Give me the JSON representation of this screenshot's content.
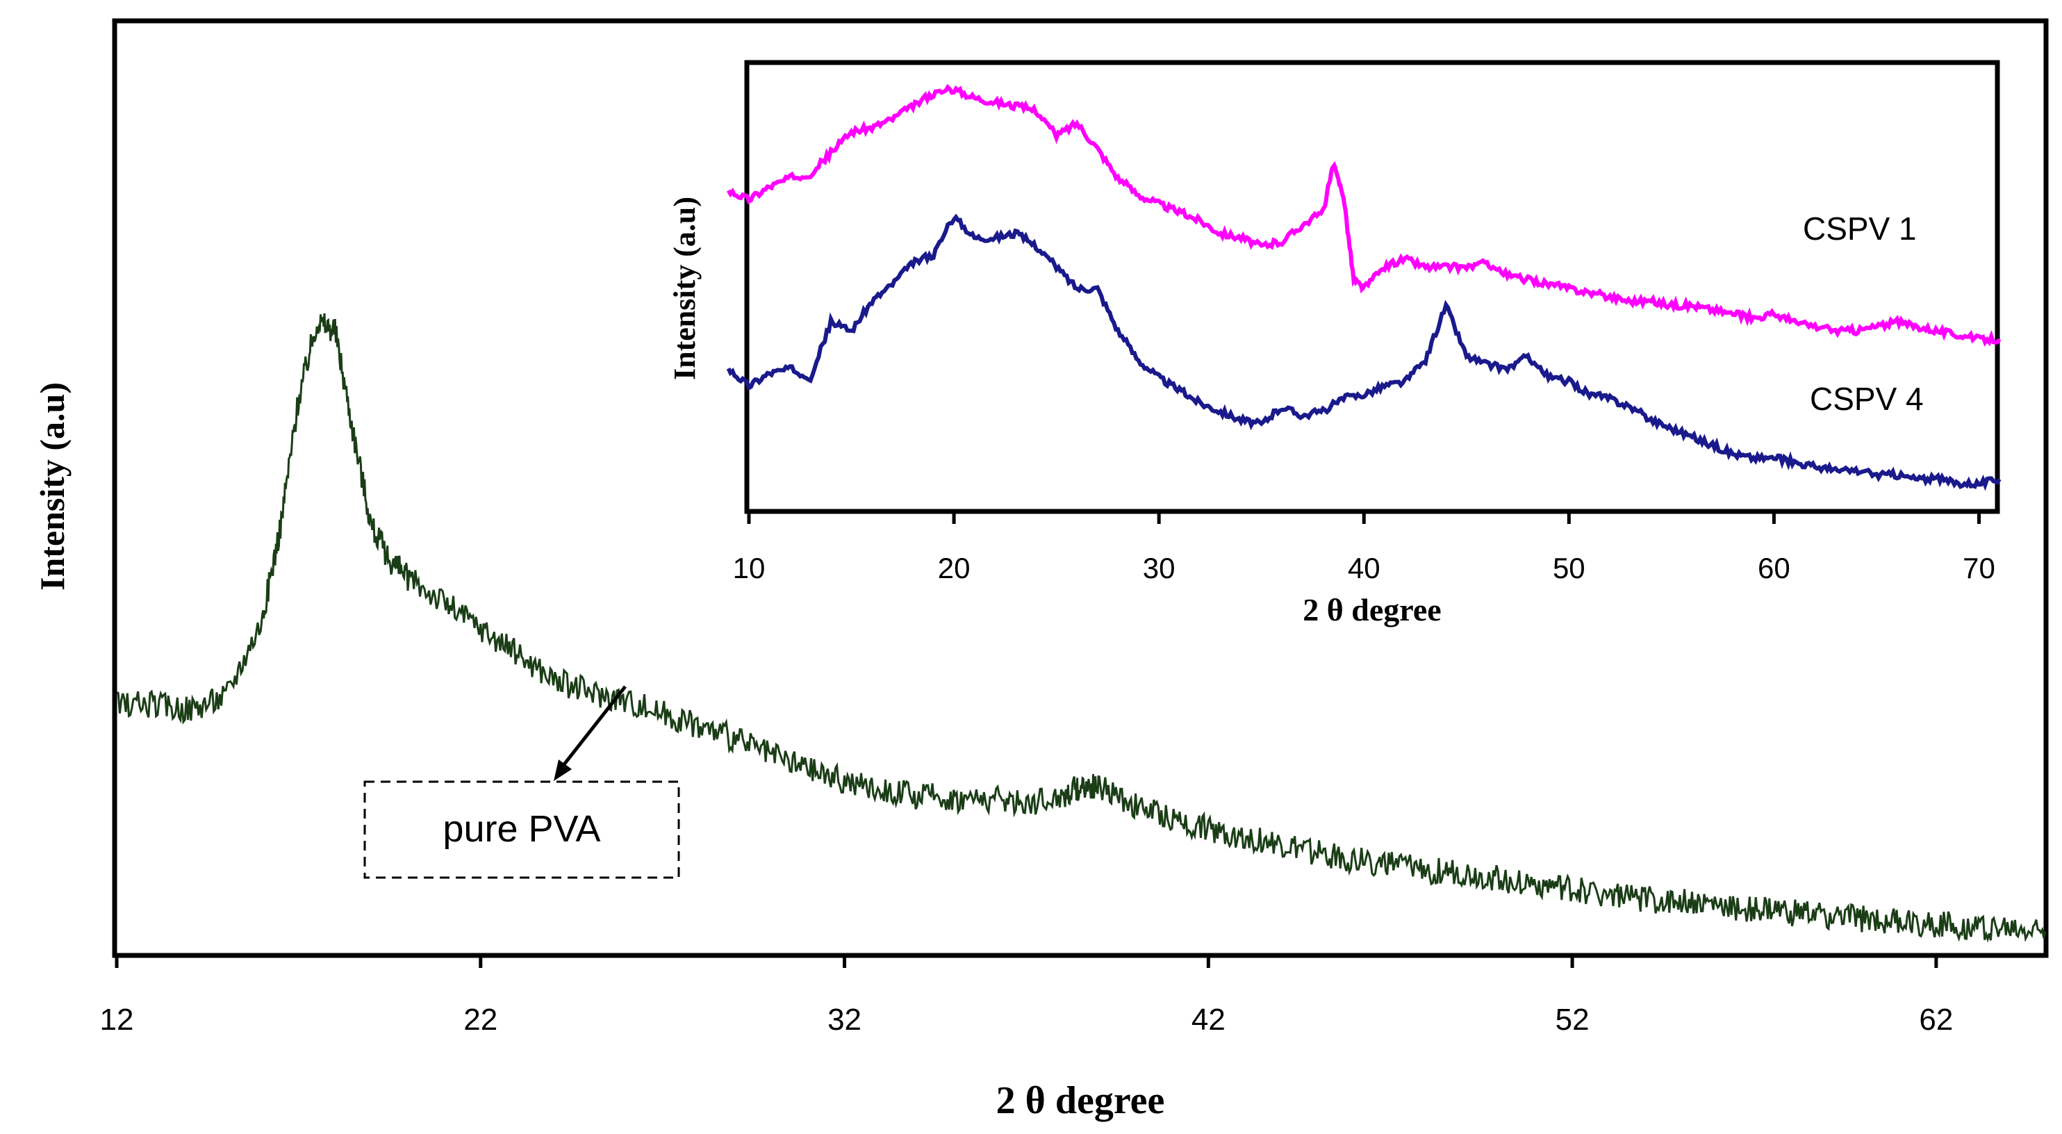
{
  "chart_data": [
    {
      "id": "main",
      "type": "line",
      "title": "",
      "xlabel": "2 θ degree",
      "ylabel": "Intensity (a.u)",
      "xlim": [
        12,
        65
      ],
      "ylim": [
        0,
        100
      ],
      "xticks": [
        "12",
        "22",
        "32",
        "42",
        "52",
        "62"
      ],
      "grid": false,
      "annotation": "pure PVA",
      "series": [
        {
          "name": "pure PVA",
          "color": "#1a3d16",
          "x": [
            12,
            13,
            14,
            15,
            16,
            16.5,
            17,
            17.5,
            18,
            18.5,
            19,
            19.5,
            20,
            21,
            22,
            23,
            24,
            25,
            26,
            27,
            28,
            29,
            30,
            31,
            32,
            33,
            34,
            35,
            36,
            37,
            38,
            38.5,
            39,
            40,
            41,
            42,
            43,
            44,
            45,
            46,
            47,
            48,
            49,
            50,
            51,
            52,
            53,
            54,
            55,
            56,
            57,
            58,
            59,
            60,
            61,
            62,
            63,
            64,
            65
          ],
          "values": [
            27,
            27,
            26.5,
            28,
            37,
            48,
            63,
            72,
            71,
            59,
            48,
            44,
            42,
            39,
            36,
            33,
            30,
            28.5,
            27.5,
            26,
            24.5,
            23,
            21,
            19.5,
            18,
            17,
            16.3,
            16,
            16,
            15.5,
            16.3,
            17.5,
            17.3,
            15,
            13.5,
            12.5,
            11.5,
            10.5,
            9.6,
            8.8,
            8.3,
            7.6,
            7.1,
            6.5,
            5.9,
            5.2,
            4.8,
            4.2,
            3.8,
            3.4,
            3.0,
            2.6,
            2.2,
            1.8,
            1.5,
            1.2,
            0.9,
            0.6,
            0.4
          ]
        }
      ]
    },
    {
      "id": "inset",
      "type": "line",
      "title": "",
      "xlabel": "2 θ degree",
      "ylabel": "Intensity (a.u)",
      "xlim": [
        10,
        71
      ],
      "ylim": [
        0,
        100
      ],
      "xticks": [
        "10",
        "20",
        "30",
        "40",
        "50",
        "60",
        "70"
      ],
      "grid": false,
      "series": [
        {
          "name": "CSPV 1",
          "color": "#ff00ff",
          "x": [
            9,
            10,
            11,
            12,
            13,
            14,
            15,
            16,
            17,
            18,
            19,
            20,
            21,
            22,
            23,
            24,
            25,
            26,
            27,
            28,
            29,
            30,
            31,
            32,
            33,
            34,
            35,
            36,
            37,
            38,
            38.5,
            39,
            39.5,
            40,
            41,
            42,
            43,
            44,
            45,
            46,
            47,
            48,
            49,
            50,
            51,
            52,
            53,
            54,
            55,
            56,
            57,
            58,
            59,
            60,
            61,
            62,
            63,
            64,
            65,
            66,
            67,
            68,
            69,
            70,
            71
          ],
          "values": [
            73,
            71,
            74,
            76,
            77,
            82,
            87,
            88,
            90,
            93,
            96,
            97,
            95,
            94,
            93,
            92,
            86,
            89,
            83,
            76,
            72,
            70,
            68,
            66,
            63,
            62,
            60,
            61,
            65,
            68,
            79,
            72,
            52,
            50,
            55,
            57,
            55,
            55,
            55,
            56,
            53,
            52,
            51,
            50,
            49,
            48,
            47,
            47,
            46,
            46,
            45,
            44,
            43,
            44,
            42,
            41,
            40,
            40,
            41,
            42,
            41,
            40,
            39,
            38,
            38
          ]
        },
        {
          "name": "CSPV 4",
          "color": "#1a1a8c",
          "x": [
            9,
            10,
            11,
            12,
            13,
            14,
            15,
            16,
            17,
            18,
            19,
            20,
            21,
            22,
            23,
            24,
            25,
            26,
            27,
            28,
            29,
            30,
            31,
            32,
            33,
            34,
            35,
            36,
            37,
            38,
            39,
            40,
            41,
            42,
            43,
            44,
            45,
            46,
            47,
            48,
            49,
            50,
            51,
            52,
            53,
            54,
            55,
            56,
            57,
            58,
            59,
            60,
            61,
            62,
            63,
            64,
            65,
            66,
            67,
            68,
            69,
            70,
            71
          ],
          "values": [
            31,
            27,
            30,
            31,
            29,
            42,
            40,
            47,
            51,
            56,
            58,
            67,
            62,
            62,
            63,
            60,
            55,
            50,
            50,
            40,
            33,
            29,
            26,
            23,
            21,
            19,
            18,
            22,
            20,
            21,
            24,
            25,
            27,
            28,
            33,
            46,
            34,
            32,
            31,
            34,
            29,
            28,
            25,
            24,
            22,
            19,
            17,
            15,
            13,
            11,
            10,
            10,
            9,
            8,
            7,
            7,
            6,
            6,
            5,
            5,
            4,
            4,
            5
          ]
        }
      ]
    }
  ]
}
